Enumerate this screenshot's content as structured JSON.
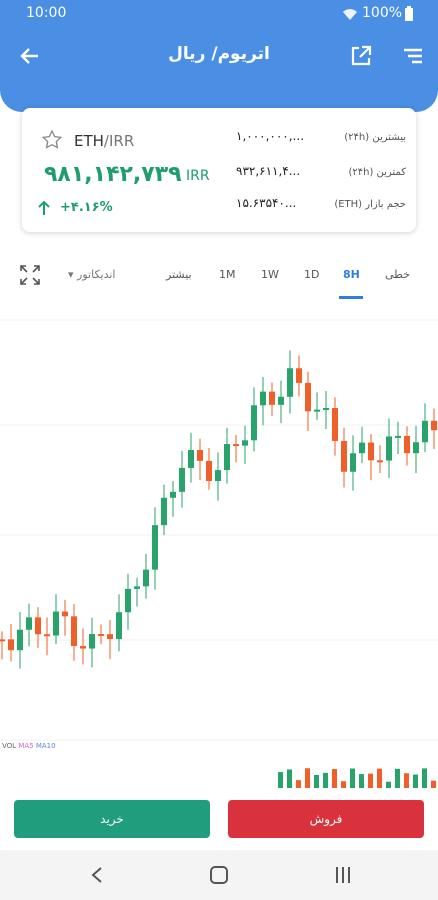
{
  "status_bar": {
    "time": "10:00",
    "battery": "100%"
  },
  "header": {
    "title": "اتریوم/ ریال"
  },
  "ticker": {
    "base": "ETH",
    "quote": "/IRR",
    "price": "۹۸۱,۱۴۲,۷۳۹",
    "currency": "IRR",
    "change": "+۴.۱۶%",
    "stats": [
      {
        "label": "بیشترین (۲۴h)",
        "value": "۱,۰۰۰,۰۰۰,..."
      },
      {
        "label": "کمترین (۲۴h)",
        "value": "۹۳۲,۶۱۱,۴..."
      },
      {
        "label": "حجم بازار (ETH)",
        "value": "۱۵.۶۳۵۴۰..."
      }
    ]
  },
  "tabs": [
    "خطی",
    "8H",
    "1D",
    "1W",
    "1M",
    "بیشتر"
  ],
  "indicator": "اندیکاتور",
  "legend": [
    "VOL",
    "MA5",
    "MA10"
  ],
  "buttons": {
    "buy": "خرید",
    "sell": "فروش"
  }
}
